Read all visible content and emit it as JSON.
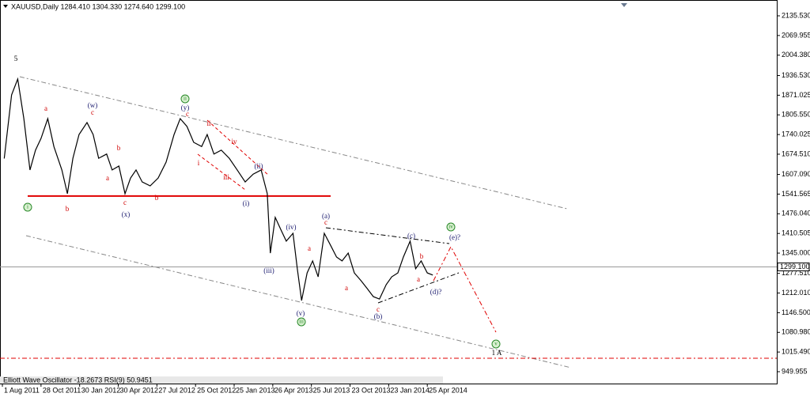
{
  "chart_data": {
    "type": "line",
    "header": "XAUUSD,Daily  1284.410 1304.330 1274.640 1299.100",
    "indicator_text": "Elliott Wave Oscillator -18.2673 RSI(9) 50.9451",
    "series": [
      {
        "name": "XAUUSD",
        "color": "#000000",
        "x": [
          3,
          15,
          25,
          35,
          45,
          54,
          63,
          74,
          84,
          97,
          106,
          115,
          125,
          138,
          148,
          157,
          170,
          179,
          190,
          200,
          209,
          218,
          228,
          241,
          254,
          267,
          280,
          290,
          301,
          312,
          325,
          334,
          345,
          357,
          370,
          383,
          396,
          409,
          422,
          432,
          437,
          445,
          454,
          463,
          474,
          481,
          488,
          497,
          506,
          515,
          525,
          535,
          545,
          554,
          564,
          574,
          585,
          595,
          605,
          615,
          626,
          635,
          645,
          654,
          665,
          674,
          683,
          693,
          702
        ],
        "values": [
          1660,
          1872,
          1925,
          1793,
          1622,
          1688,
          1727,
          1793,
          1700,
          1622,
          1543,
          1661,
          1740,
          1780,
          1740,
          1661,
          1675,
          1622,
          1635,
          1543,
          1595,
          1622,
          1582,
          1569,
          1595,
          1648,
          1740,
          1793,
          1767,
          1714,
          1700,
          1740,
          1675,
          1688,
          1661,
          1622,
          1582,
          1608,
          1622,
          1543,
          1345,
          1464,
          1424,
          1385,
          1411,
          1293,
          1187,
          1279,
          1319,
          1266,
          1411,
          1372,
          1332,
          1319,
          1345,
          1279,
          1253,
          1227,
          1200,
          1192,
          1240,
          1266,
          1279,
          1332,
          1385,
          1293,
          1319,
          1279,
          1272
        ]
      }
    ],
    "xlim": [
      -3.9,
      1263
    ],
    "xticks": [
      {
        "value": 0,
        "label": "1 Aug 2011"
      },
      {
        "value": 63,
        "label": "28 Oct 2011"
      },
      {
        "value": 126,
        "label": "30 Jan 2012"
      },
      {
        "value": 189,
        "label": "30 Apr 2012"
      },
      {
        "value": 252,
        "label": "27 Jul 2012"
      },
      {
        "value": 315,
        "label": "25 Oct 2012"
      },
      {
        "value": 378,
        "label": "25 Jan 2013"
      },
      {
        "value": 441,
        "label": "26 Apr 2013"
      },
      {
        "value": 504,
        "label": "25 Jul 2013"
      },
      {
        "value": 567,
        "label": "23 Oct 2013"
      },
      {
        "value": 630,
        "label": "23 Jan 2014"
      },
      {
        "value": 693,
        "label": "25 Apr 2014"
      }
    ],
    "ylim": [
      910.43,
      2188.2
    ],
    "yticks": [
      {
        "value": 2135.53,
        "label": "2135.530"
      },
      {
        "value": 2069.955,
        "label": "2069.955"
      },
      {
        "value": 2004.38,
        "label": "2004.380"
      },
      {
        "value": 1936.53,
        "label": "1936.530"
      },
      {
        "value": 1871.025,
        "label": "1871.025"
      },
      {
        "value": 1805.55,
        "label": "1805.550"
      },
      {
        "value": 1740.025,
        "label": "1740.025"
      },
      {
        "value": 1674.51,
        "label": "1674.510"
      },
      {
        "value": 1607.09,
        "label": "1607.090"
      },
      {
        "value": 1541.565,
        "label": "1541.565"
      },
      {
        "value": 1476.04,
        "label": "1476.040"
      },
      {
        "value": 1410.505,
        "label": "1410.505"
      },
      {
        "value": 1345,
        "label": "1345.000"
      },
      {
        "value": 1277.51,
        "label": "1277.510"
      },
      {
        "value": 1212.01,
        "label": "1212.010"
      },
      {
        "value": 1146.5,
        "label": "1146.500"
      },
      {
        "value": 1080.98,
        "label": "1080.980"
      },
      {
        "value": 1015.49,
        "label": "1015.490"
      },
      {
        "value": 949.955,
        "label": "949.955"
      }
    ],
    "last_price": {
      "value": 1299.1,
      "label": "1299.100"
    },
    "hlines": [
      {
        "value": 1535,
        "color": "#e00000",
        "style": "solid"
      },
      {
        "value": 994.7,
        "color": "#e00000",
        "style": "dashdot"
      }
    ],
    "annotations": [
      "5",
      "a",
      "(w)",
      "c",
      "b",
      "a",
      "b",
      "c",
      "(x)",
      "b",
      "(y)",
      "c",
      "ii",
      "iv",
      "i",
      "iii",
      "(ii)",
      "(i)",
      "(iii)",
      "(iv)",
      "(v)",
      "(a)",
      "c",
      "a",
      "a",
      "(b)",
      "c",
      "(c)",
      "b",
      "a",
      "(d)?",
      "(e)?",
      "1 A",
      "i",
      "ii",
      "iii",
      "iv",
      "v"
    ]
  }
}
